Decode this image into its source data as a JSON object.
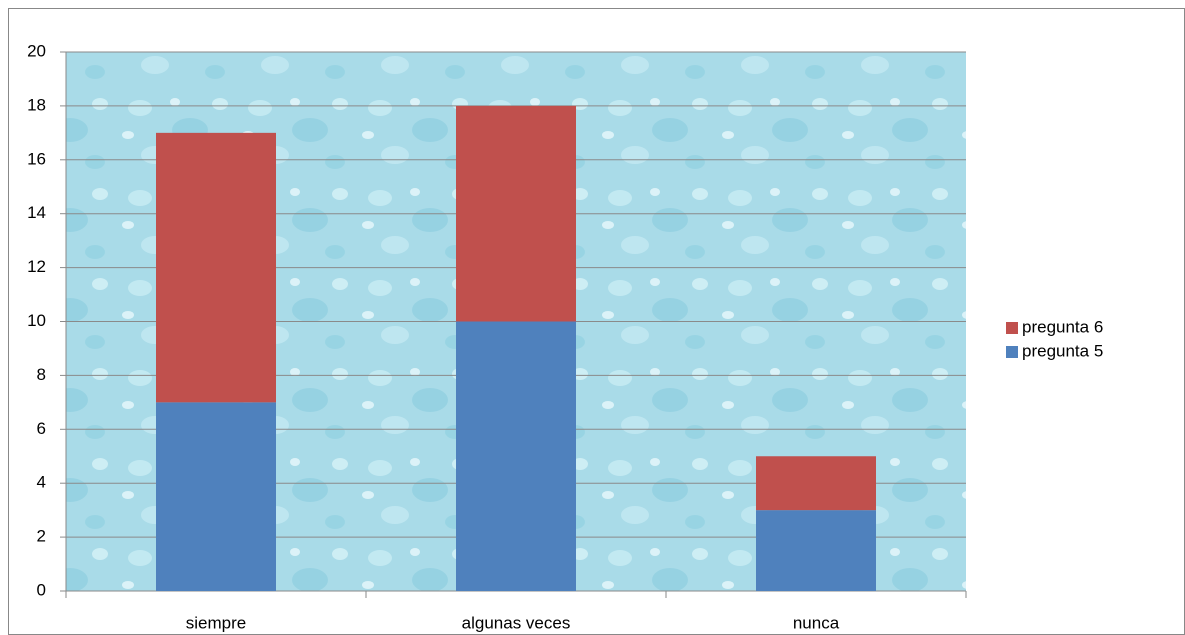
{
  "chart_data": {
    "type": "stacked-bar",
    "categories": [
      "siempre",
      "algunas veces",
      "nunca"
    ],
    "series": [
      {
        "name": "pregunta 5",
        "color": "#4f81bd",
        "values": [
          7,
          10,
          3
        ]
      },
      {
        "name": "pregunta 6",
        "color": "#c0504d",
        "values": [
          10,
          8,
          2
        ]
      }
    ],
    "ylim": [
      0,
      20
    ],
    "yticks": [
      0,
      2,
      4,
      6,
      8,
      10,
      12,
      14,
      16,
      18,
      20
    ],
    "grid": true,
    "legend": "right"
  }
}
